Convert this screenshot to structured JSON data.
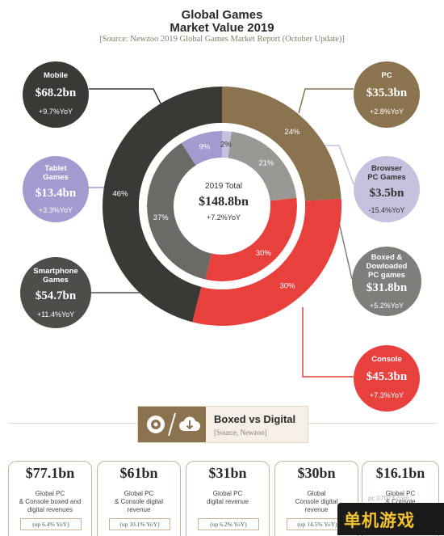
{
  "title_line1": "Global Games",
  "title_line2": "Market Value 2019",
  "source": "[Source: Newzoo 2019 Global Games Market Report (October Update)]",
  "total": {
    "label": "2019 Total",
    "value": "$148.8bn",
    "yoy": "+7.2%YoY"
  },
  "segments": {
    "mobile": {
      "name": "Mobile",
      "value": "$68.2bn",
      "yoy": "+9.7%YoY",
      "color": "#3a3935"
    },
    "tablet": {
      "name": "Tablet\nGames",
      "value": "$13.4bn",
      "yoy": "+3.3%YoY",
      "color": "#a39ad0"
    },
    "smartphone": {
      "name": "Smartphone\nGames",
      "value": "$54.7bn",
      "yoy": "+11.4%YoY",
      "color": "#4e4d49"
    },
    "pc": {
      "name": "PC",
      "value": "$35.3bn",
      "yoy": "+2.8%YoY",
      "color": "#8b7350"
    },
    "browser": {
      "name": "Browser\nPC Games",
      "value": "$3.5bn",
      "yoy": "-15.4%YoY",
      "color": "#c4c2de"
    },
    "boxed": {
      "name": "Boxed &\nDowloaded\nPC games",
      "value": "$31.8bn",
      "yoy": "+5.2%YoY",
      "color": "#807e7b"
    },
    "console": {
      "name": "Console",
      "value": "$45.3bn",
      "yoy": "+7.3%YoY",
      "color": "#e8403d"
    }
  },
  "chart_data": {
    "type": "pie",
    "title": "Global Games Market Value 2019",
    "outer_ring": {
      "labels": [
        "PC",
        "Console",
        "Mobile"
      ],
      "values": [
        24,
        30,
        46
      ],
      "value_labels": [
        "24%",
        "30%",
        "46%"
      ],
      "colors": [
        "#8b7350",
        "#e8403d",
        "#3a3935"
      ]
    },
    "inner_ring": {
      "labels": [
        "Browser PC Games",
        "Boxed & Dowloaded PC games",
        "Console",
        "Smartphone Games",
        "Tablet Games"
      ],
      "values": [
        2,
        21,
        30,
        37,
        9
      ],
      "value_labels": [
        "2%",
        "21%",
        "30%",
        "37%",
        "9%"
      ],
      "colors": [
        "#c4c2de",
        "#9a9894",
        "#e8403d",
        "#6b6a66",
        "#a39ad0"
      ]
    }
  },
  "ribbon": {
    "title": "Boxed vs Digital",
    "source": "[Source, Newzoo]"
  },
  "cards": [
    {
      "value": "$77.1bn",
      "desc": "Global PC\n& Console boxed and\ndigital revenues",
      "growth": "(up 6.4% YoY)"
    },
    {
      "value": "$61bn",
      "desc": "Global PC\n& Console digital\nrevenue",
      "growth": "(up 10.1% YoY)"
    },
    {
      "value": "$31bn",
      "desc": "Global PC\ndigital revenue",
      "growth": "(up 6.2% YoY)"
    },
    {
      "value": "$30bn",
      "desc": "Global\nConsole digital\nrevenue",
      "growth": "(up 14.5% YoY)"
    },
    {
      "value": "$16.1bn",
      "desc": "Global PC\n& Console",
      "growth": ""
    }
  ],
  "watermark": {
    "text": "单机游戏",
    "site": "pc.07073.com"
  }
}
